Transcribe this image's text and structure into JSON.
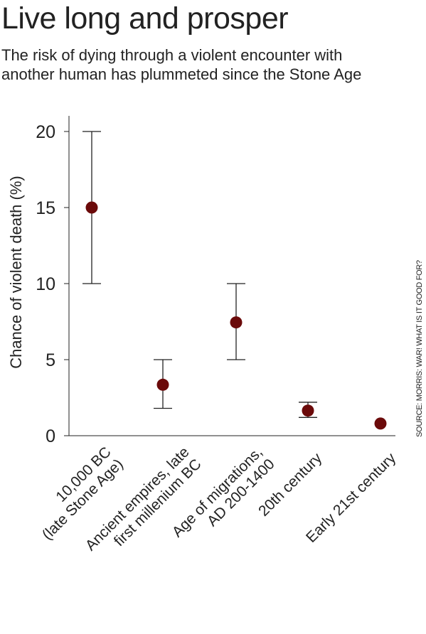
{
  "title": "Live long and prosper",
  "subtitle_lines": [
    "The risk of dying through a violent encounter with",
    "another human has plummeted since the Stone Age"
  ],
  "source": "SOURCE: MORRIS: WAR! WHAT IS IT GOOD FOR?",
  "chart_data": {
    "type": "scatter",
    "title": "Live long and prosper",
    "ylabel": "Chance of violent death (%)",
    "ylim": [
      0,
      20
    ],
    "yticks": [
      0,
      5,
      10,
      15,
      20
    ],
    "grid": false,
    "marker_color": "#6b0a0a",
    "categories": [
      [
        "10,000 BC",
        "(late Stone Age)"
      ],
      [
        "Ancient empires, late",
        "first millenium BC"
      ],
      [
        "Age of migrations,",
        "AD 200-1400"
      ],
      [
        "20th century"
      ],
      [
        "Early 21st century"
      ]
    ],
    "values": [
      15,
      3.35,
      7.45,
      1.65,
      0.8
    ],
    "error_low": [
      10,
      1.8,
      5,
      1.2,
      null
    ],
    "error_high": [
      20,
      5,
      10,
      2.2,
      null
    ]
  }
}
